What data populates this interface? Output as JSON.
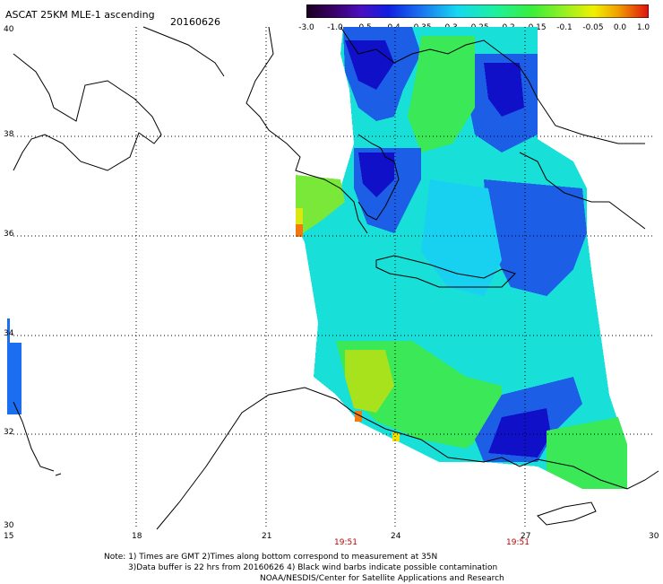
{
  "header": {
    "title": "ASCAT 25KM MLE-1 ascending",
    "date": "20160626"
  },
  "colorbar": {
    "ticks": [
      "-3.0",
      "-1.0",
      "-0.5",
      "-0.4",
      "-0.35",
      "-0.3",
      "-0.25",
      "-0.2",
      "-0.15",
      "-0.1",
      "-0.05",
      "0.0",
      "1.0"
    ]
  },
  "axes": {
    "lat_labels": [
      "40",
      "38",
      "36",
      "34",
      "32",
      "30"
    ],
    "lon_labels": [
      "15",
      "18",
      "21",
      "24",
      "27",
      "30"
    ]
  },
  "times": [
    "19:51",
    "19:51"
  ],
  "footer": {
    "line1": "Note: 1) Times are GMT 2)Times along bottom correspond to measurement at 35N",
    "line2": "3)Data buffer is 22 hrs from 20160626 4) Black wind barbs indicate possible contamination",
    "line3": "NOAA/NESDIS/Center for Satellite Applications and Research"
  },
  "colors": {
    "dark_blue": "#1010c8",
    "blue": "#1c5ee6",
    "cyan": "#16e0e6",
    "green": "#2ee84a",
    "yellow_green": "#a8e21c",
    "yellow": "#f2e000",
    "orange": "#f07a10"
  }
}
